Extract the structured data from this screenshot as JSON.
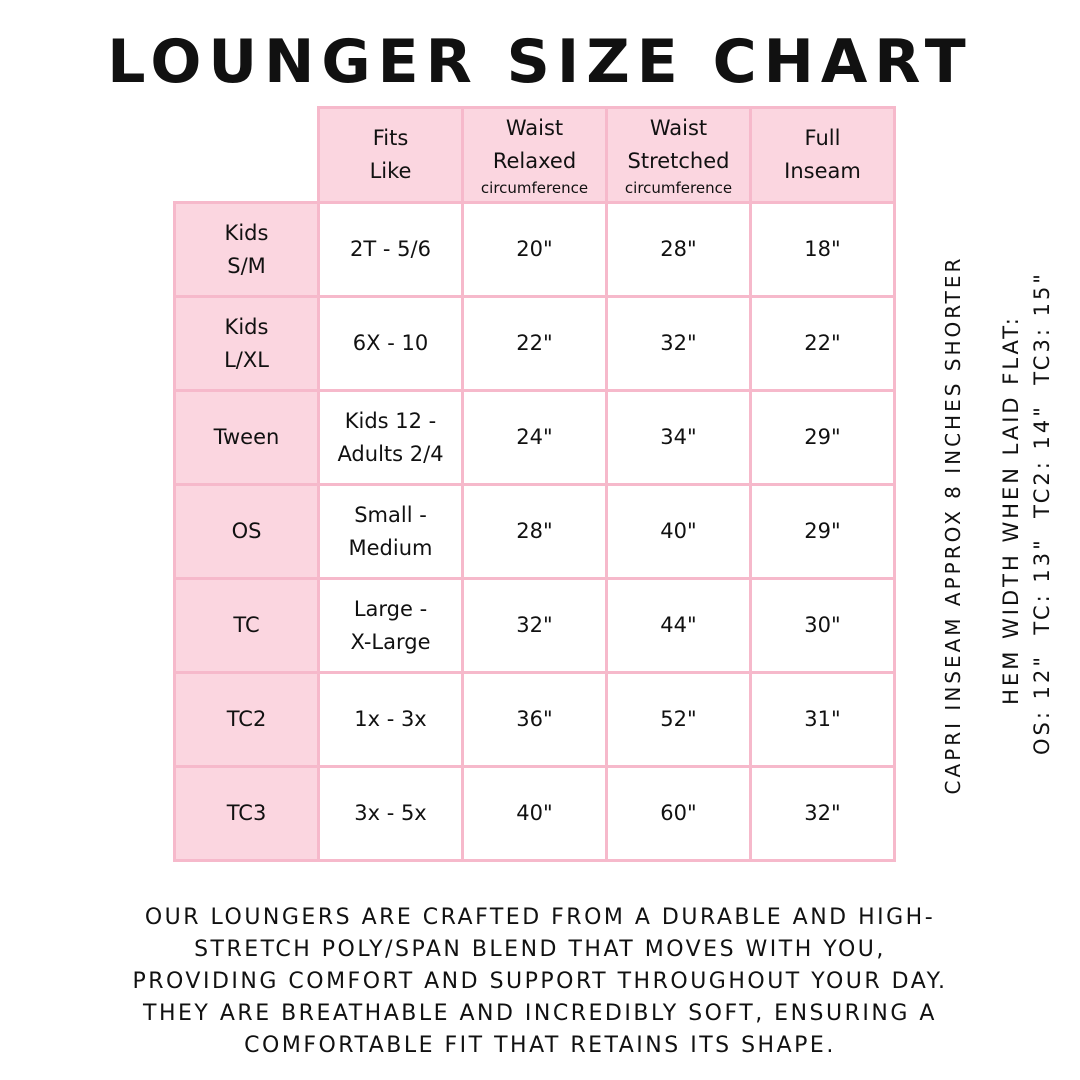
{
  "title": "LOUNGER SIZE CHART",
  "table": {
    "header": [
      {
        "lines": [
          "Fits",
          "Like"
        ]
      },
      {
        "lines": [
          "Waist",
          "Relaxed"
        ],
        "note": "circumference"
      },
      {
        "lines": [
          "Waist",
          "Stretched"
        ],
        "note": "circumference"
      },
      {
        "lines": [
          "Full",
          "Inseam"
        ]
      }
    ],
    "rows": [
      [
        [
          "Kids",
          "S/M"
        ],
        [
          "2T - 5/6"
        ],
        [
          "20\""
        ],
        [
          "28\""
        ],
        [
          "18\""
        ]
      ],
      [
        [
          "Kids",
          "L/XL"
        ],
        [
          "6X - 10"
        ],
        [
          "22\""
        ],
        [
          "32\""
        ],
        [
          "22\""
        ]
      ],
      [
        [
          "Tween"
        ],
        [
          "Kids 12 -",
          "Adults 2/4"
        ],
        [
          "24\""
        ],
        [
          "34\""
        ],
        [
          "29\""
        ]
      ],
      [
        [
          "OS"
        ],
        [
          "Small -",
          "Medium"
        ],
        [
          "28\""
        ],
        [
          "40\""
        ],
        [
          "29\""
        ]
      ],
      [
        [
          "TC"
        ],
        [
          "Large -",
          "X-Large"
        ],
        [
          "32\""
        ],
        [
          "44\""
        ],
        [
          "30\""
        ]
      ],
      [
        [
          "TC2"
        ],
        [
          "1x - 3x"
        ],
        [
          "36\""
        ],
        [
          "52\""
        ],
        [
          "31\""
        ]
      ],
      [
        [
          "TC3"
        ],
        [
          "3x - 5x"
        ],
        [
          "40\""
        ],
        [
          "60\""
        ],
        [
          "32\""
        ]
      ]
    ]
  },
  "side_notes": {
    "capri": "CAPRI INSEAM APPROX 8 INCHES SHORTER",
    "hem_title": "HEM WIDTH WHEN LAID FLAT:",
    "hem_values": "OS: 12\"  TC: 13\"  TC2: 14\"  TC3: 15\""
  },
  "footer": [
    "OUR LOUNGERS ARE CRAFTED FROM A DURABLE AND HIGH-",
    "STRETCH POLY/SPAN BLEND THAT MOVES WITH YOU,",
    "PROVIDING COMFORT AND SUPPORT THROUGHOUT YOUR DAY.",
    "THEY ARE BREATHABLE AND INCREDIBLY SOFT, ENSURING A",
    "COMFORTABLE FIT THAT RETAINS ITS SHAPE."
  ]
}
